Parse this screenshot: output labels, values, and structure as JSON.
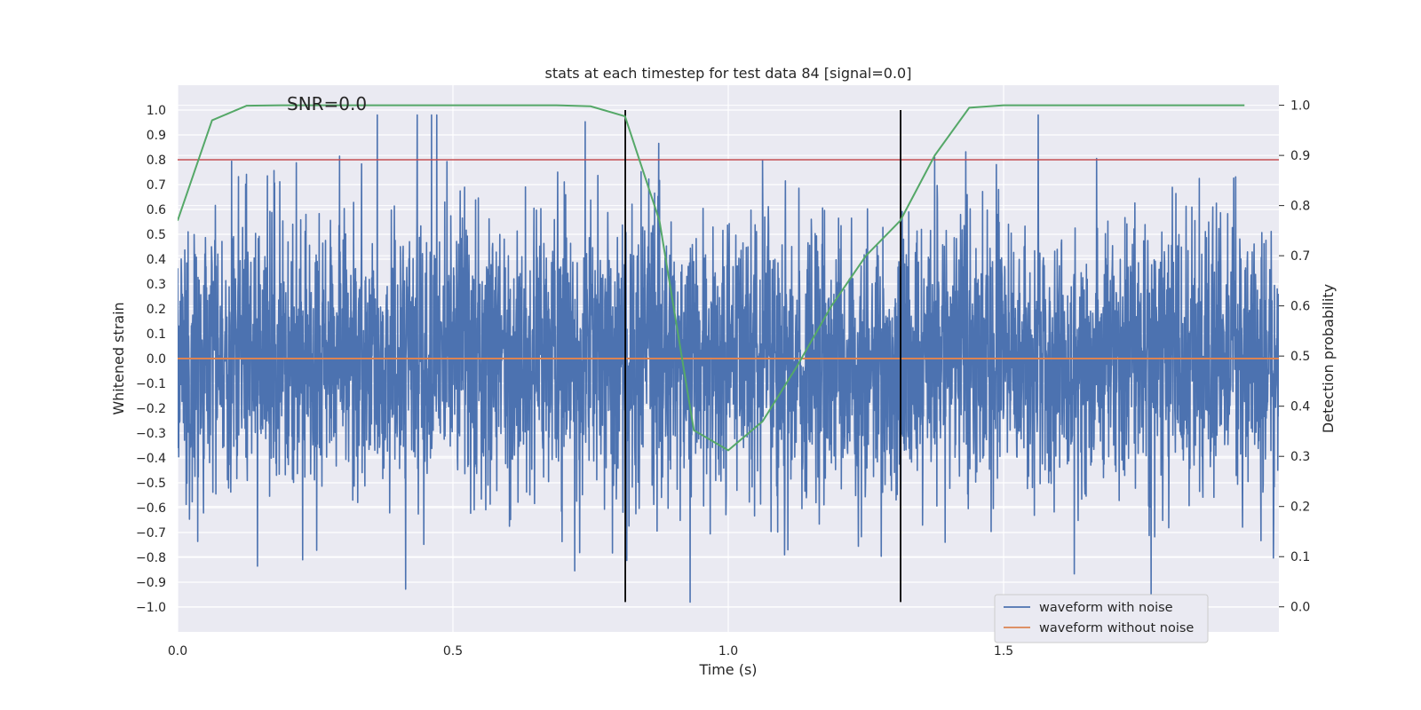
{
  "chart_data": {
    "type": "line",
    "title": "stats at each timestep for test data 84 [signal=0.0]",
    "xlabel": "Time (s)",
    "ylabel": "Whitened strain",
    "y2label": "Detection probability",
    "xlim": [
      0.0,
      2.0
    ],
    "ylim": [
      -1.1,
      1.1
    ],
    "y2lim": [
      -0.05,
      1.04
    ],
    "xticks": [
      0.0,
      0.5,
      1.0,
      1.5
    ],
    "yticks": [
      -1.0,
      -0.9,
      -0.8,
      -0.7,
      -0.6,
      -0.5,
      -0.4,
      -0.3,
      -0.2,
      -0.1,
      0.0,
      0.1,
      0.2,
      0.3,
      0.4,
      0.5,
      0.6,
      0.7,
      0.8,
      0.9,
      1.0
    ],
    "y2ticks": [
      0.0,
      0.1,
      0.2,
      0.3,
      0.4,
      0.5,
      0.6,
      0.7,
      0.8,
      0.9,
      1.0
    ],
    "grid": true,
    "legend_position": "bottom-right",
    "annotation": "SNR=0.0",
    "noise": {
      "name": "waveform with noise",
      "color": "#4c72b0",
      "seed": 84,
      "n_points": 4000,
      "approx_range": [
        -0.98,
        0.98
      ]
    },
    "clean": {
      "name": "waveform without noise",
      "color": "#dd8452",
      "value": 0.0
    },
    "threshold": {
      "y": 0.8,
      "color": "#c44e52"
    },
    "vlines": {
      "x": [
        0.813,
        1.313
      ],
      "y_range": [
        -0.98,
        1.0
      ],
      "color": "#000000"
    },
    "probability": {
      "color": "#55a868",
      "x": [
        0.0,
        0.0625,
        0.125,
        0.1875,
        0.25,
        0.3125,
        0.375,
        0.4375,
        0.5,
        0.5625,
        0.625,
        0.6875,
        0.75,
        0.8125,
        0.875,
        0.9375,
        1.0,
        1.0625,
        1.125,
        1.1875,
        1.25,
        1.3125,
        1.375,
        1.4375,
        1.5,
        1.5625,
        1.625,
        1.6875,
        1.75,
        1.8125,
        1.875,
        1.9375
      ],
      "y": [
        0.77,
        0.97,
        0.999,
        1.0,
        1.0,
        1.0,
        1.0,
        1.0,
        1.0,
        1.0,
        1.0,
        1.0,
        0.998,
        0.978,
        0.77,
        0.352,
        0.312,
        0.37,
        0.48,
        0.6,
        0.7,
        0.77,
        0.9,
        0.995,
        1.0,
        1.0,
        1.0,
        1.0,
        1.0,
        1.0,
        1.0,
        1.0
      ]
    }
  }
}
